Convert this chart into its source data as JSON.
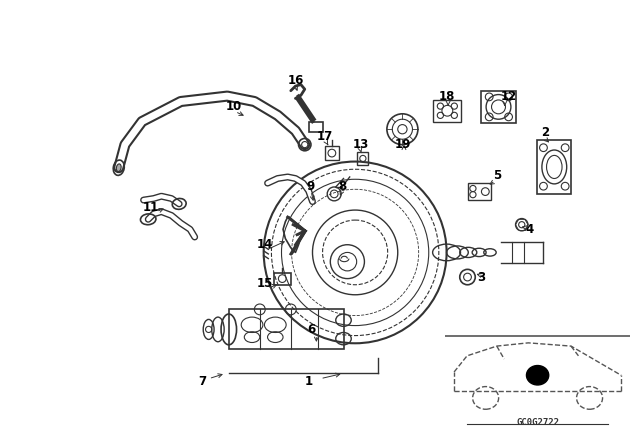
{
  "background_color": "#ffffff",
  "line_color": "#333333",
  "label_color": "#000000",
  "watermark": "GC0G2722",
  "fig_width": 6.4,
  "fig_height": 4.48
}
